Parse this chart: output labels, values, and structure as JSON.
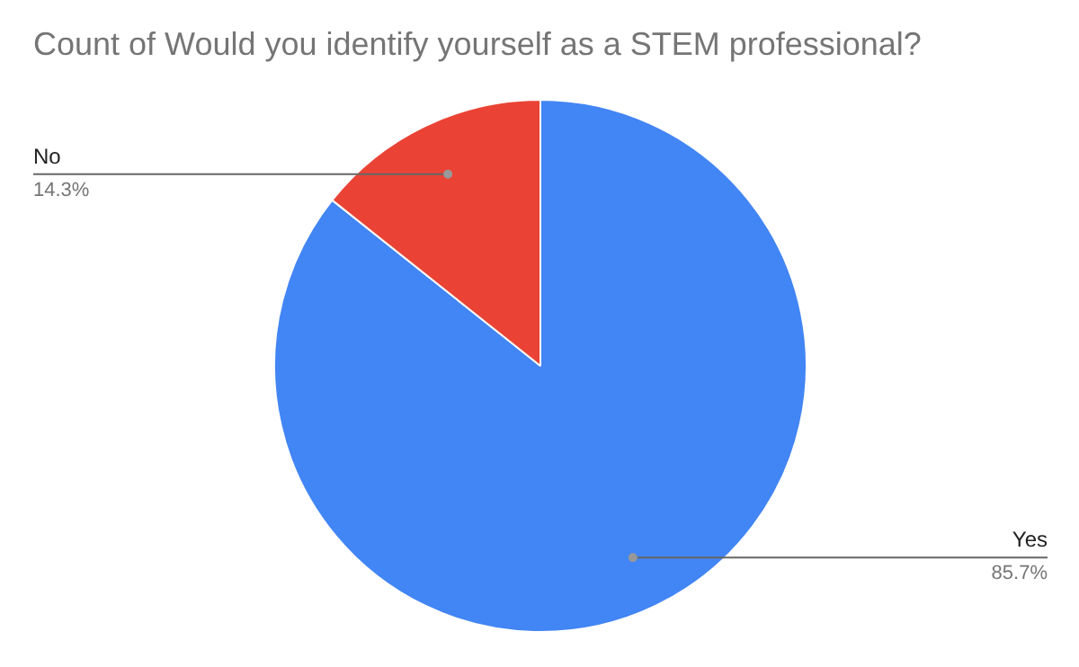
{
  "chart_data": {
    "type": "pie",
    "title": "Count of Would you identify yourself as a STEM professional?",
    "categories": [
      "Yes",
      "No"
    ],
    "values": [
      85.7,
      14.3
    ],
    "colors": [
      "#4285f4",
      "#ea4335"
    ],
    "value_labels": [
      "85.7%",
      "14.3%"
    ]
  }
}
